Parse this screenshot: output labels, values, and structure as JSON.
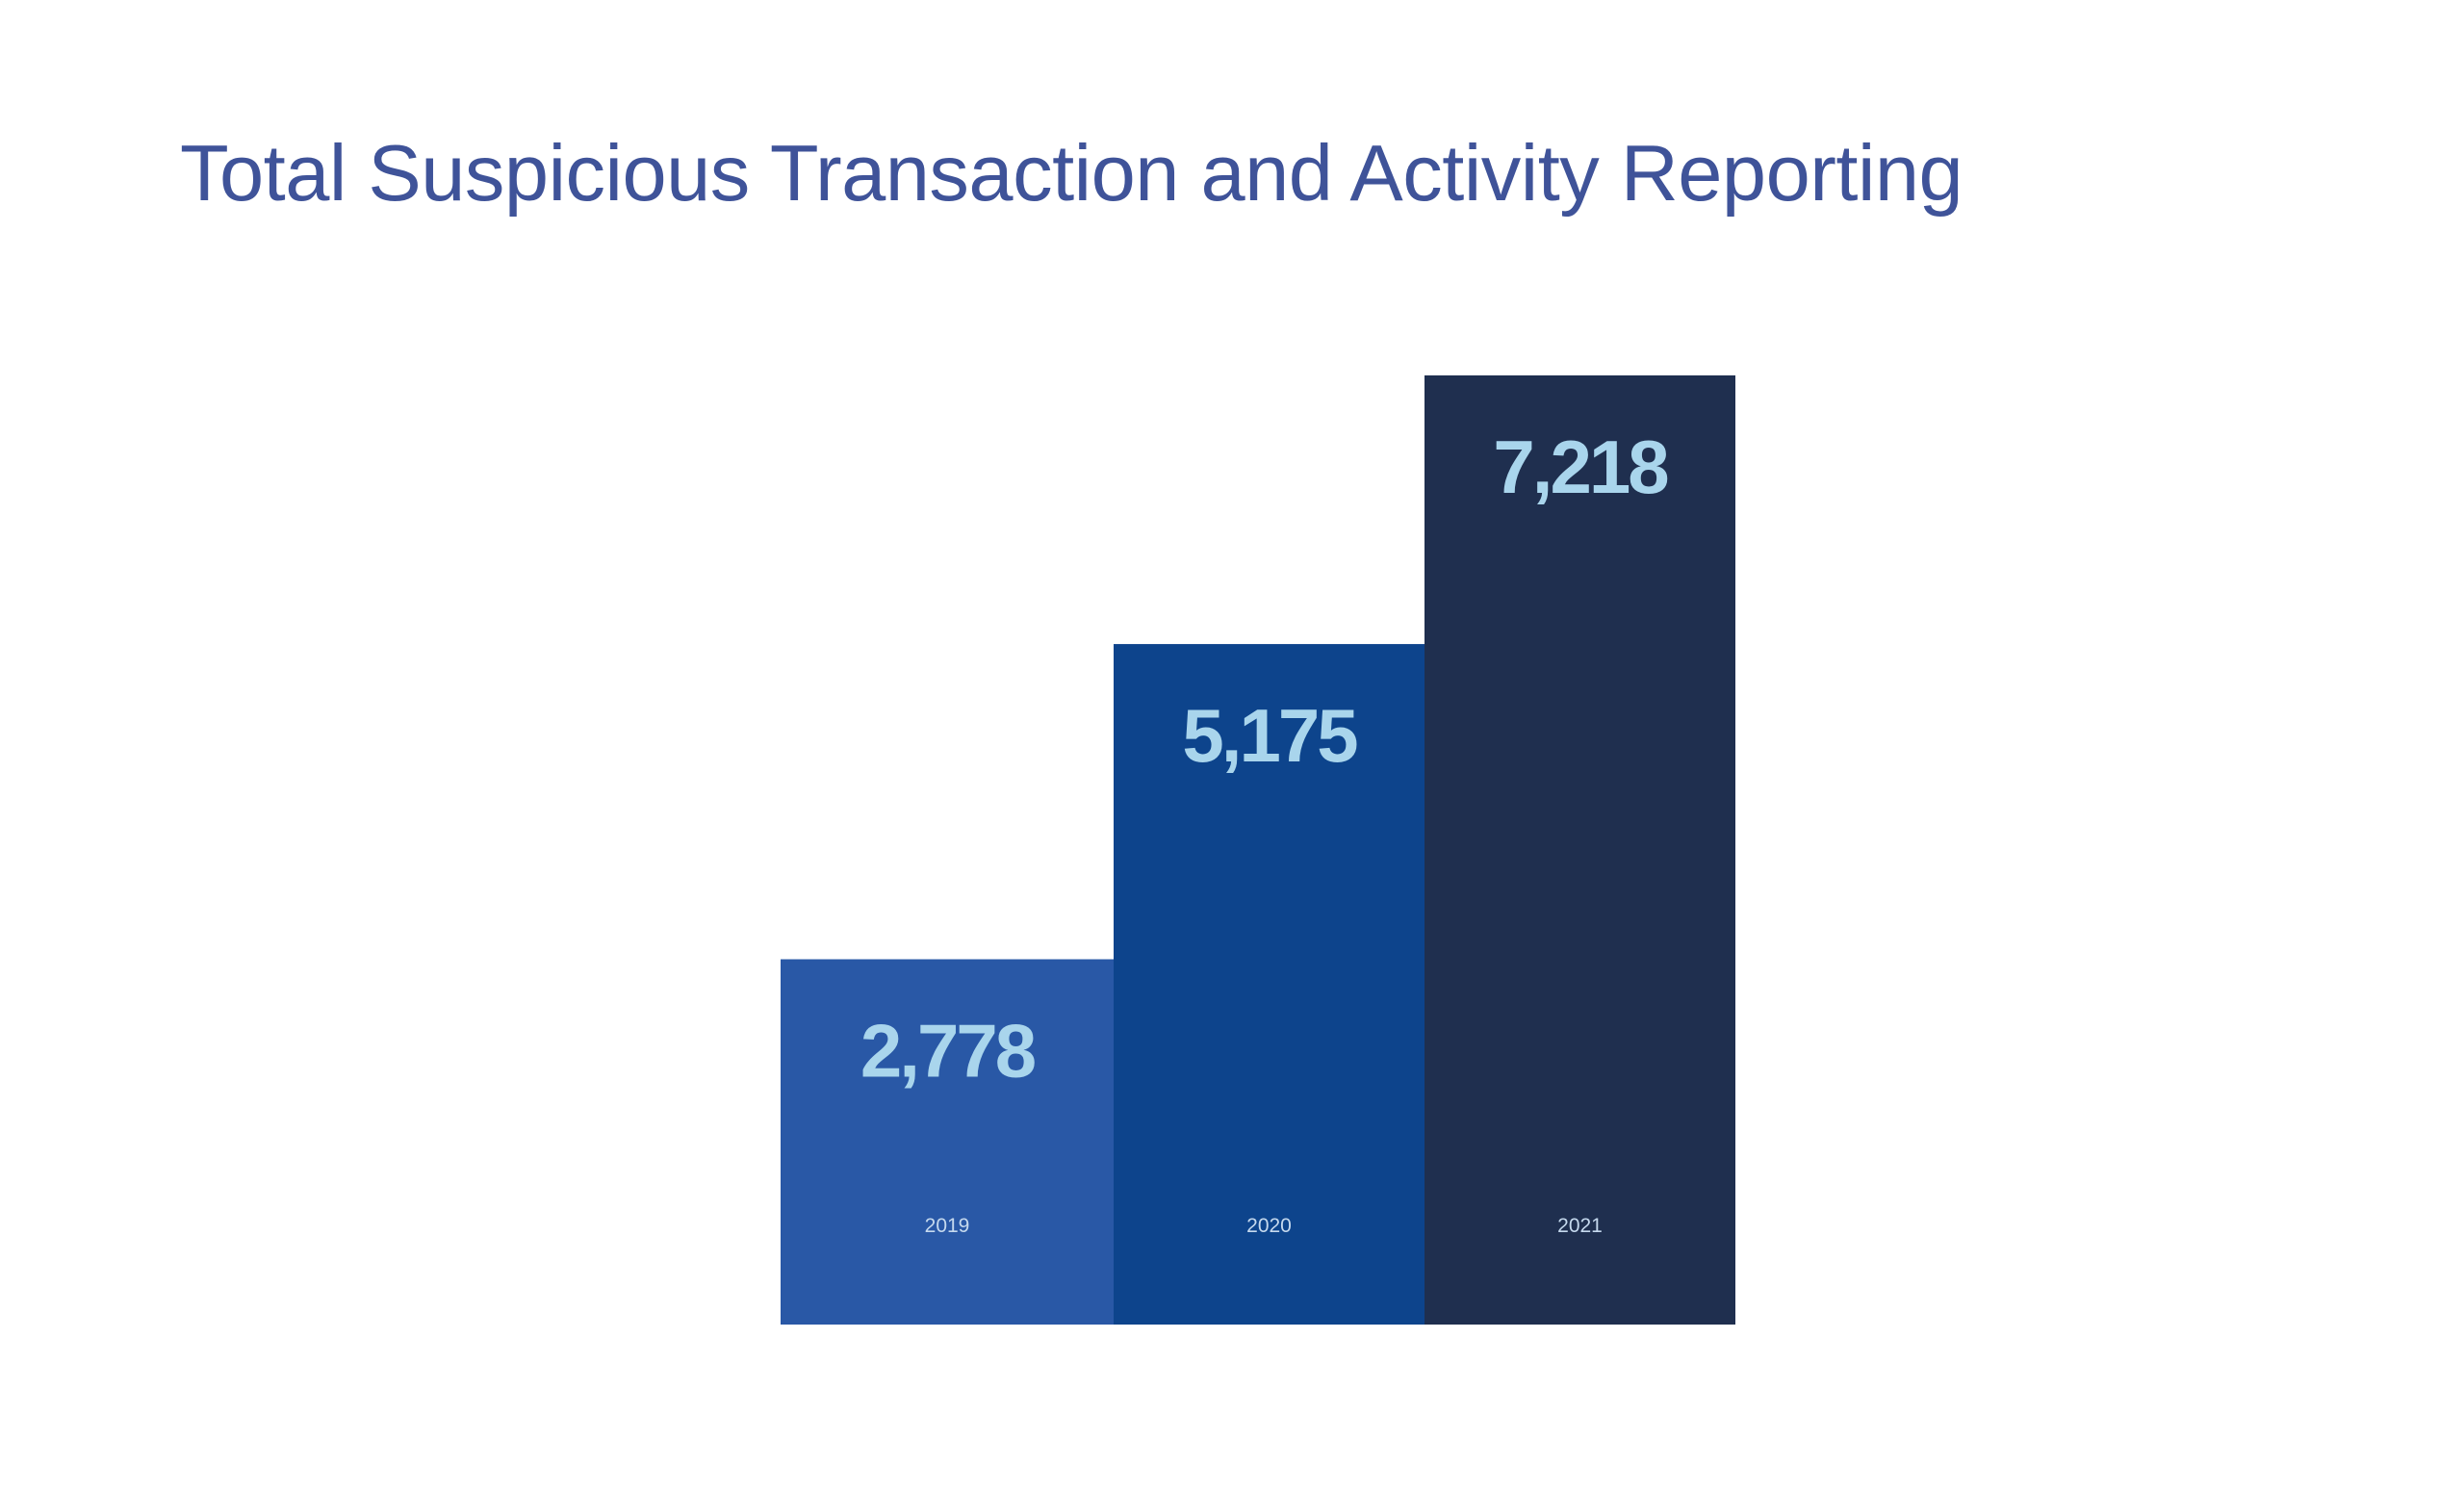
{
  "title": "Total Suspicious Transaction and Activity Reporting",
  "colors": {
    "title": "#3f5399",
    "value_label": "#a9d5ec",
    "category_label": "#c5d9ee",
    "background": "#ffffff"
  },
  "chart_data": {
    "type": "bar",
    "title": "Total Suspicious Transaction and Activity Reporting",
    "xlabel": "",
    "ylabel": "",
    "categories": [
      "2019",
      "2020",
      "2021"
    ],
    "values": [
      2778,
      5175,
      7218
    ],
    "value_labels": [
      "2,778",
      "5,175",
      "7,218"
    ],
    "bar_colors": [
      "#2958a6",
      "#0d448c",
      "#1f2f4f"
    ],
    "ylim": [
      0,
      7218
    ],
    "grid": false,
    "legend": "none"
  }
}
